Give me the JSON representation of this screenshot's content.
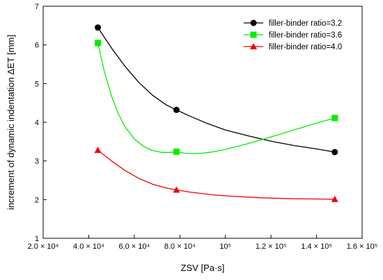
{
  "chart_data": {
    "type": "line",
    "xlabel": "ZSV [Pa·s]",
    "ylabel": "increment of dynamic indentation ΔET [mm]",
    "xlim": [
      20000,
      160000
    ],
    "ylim": [
      1,
      7
    ],
    "x_ticks": [
      {
        "value": 20000,
        "label": "2.0 × 10⁴"
      },
      {
        "value": 40000,
        "label": "4.0 × 10⁴"
      },
      {
        "value": 60000,
        "label": "6.0 × 10⁴"
      },
      {
        "value": 80000,
        "label": "8.0 × 10⁴"
      },
      {
        "value": 100000,
        "label": "10⁵"
      },
      {
        "value": 120000,
        "label": "1.2 × 10⁵"
      },
      {
        "value": 140000,
        "label": "1.4 × 10⁵"
      },
      {
        "value": 160000,
        "label": "1.6 × 10⁵"
      }
    ],
    "y_ticks": [
      {
        "value": 1,
        "label": "1"
      },
      {
        "value": 2,
        "label": "2"
      },
      {
        "value": 3,
        "label": "3"
      },
      {
        "value": 4,
        "label": "4"
      },
      {
        "value": 5,
        "label": "5"
      },
      {
        "value": 6,
        "label": "6"
      },
      {
        "value": 7,
        "label": "7"
      }
    ],
    "legend_position": "top-right",
    "grid": false,
    "series": [
      {
        "name": "filler-binder ratio=3.2",
        "color": "#000000",
        "marker": "circle",
        "x": [
          44000,
          78500,
          148000
        ],
        "y": [
          6.45,
          4.32,
          3.23
        ],
        "curve_x": [
          44000,
          50000,
          56000,
          62000,
          68000,
          74000,
          78500,
          84000,
          92000,
          100000,
          110000,
          120000,
          130000,
          140000,
          148000
        ],
        "curve_y": [
          6.45,
          5.92,
          5.44,
          5.03,
          4.7,
          4.45,
          4.32,
          4.17,
          3.97,
          3.8,
          3.65,
          3.51,
          3.4,
          3.31,
          3.23
        ]
      },
      {
        "name": "filler-binder ratio=3.6",
        "color": "#00ee00",
        "marker": "square",
        "x": [
          44000,
          78500,
          148000
        ],
        "y": [
          6.05,
          3.24,
          4.11
        ],
        "curve_x": [
          44000,
          47000,
          50000,
          53000,
          56000,
          60000,
          64000,
          68000,
          72000,
          76000,
          78500,
          82000,
          86000,
          90000,
          95000,
          100000,
          110000,
          120000,
          130000,
          140000,
          148000
        ],
        "curve_y": [
          6.05,
          5.28,
          4.68,
          4.22,
          3.88,
          3.57,
          3.38,
          3.27,
          3.22,
          3.22,
          3.24,
          3.2,
          3.19,
          3.2,
          3.24,
          3.3,
          3.45,
          3.62,
          3.8,
          3.98,
          4.11
        ]
      },
      {
        "name": "filler-binder ratio=4.0",
        "color": "#ee0000",
        "marker": "triangle",
        "x": [
          44000,
          78500,
          148000
        ],
        "y": [
          3.28,
          2.25,
          2.01
        ],
        "curve_x": [
          44000,
          50000,
          56000,
          62000,
          68000,
          74000,
          78500,
          85000,
          95000,
          105000,
          115000,
          125000,
          135000,
          148000
        ],
        "curve_y": [
          3.28,
          3.0,
          2.75,
          2.55,
          2.4,
          2.3,
          2.25,
          2.19,
          2.12,
          2.08,
          2.05,
          2.03,
          2.02,
          2.01
        ]
      }
    ]
  }
}
